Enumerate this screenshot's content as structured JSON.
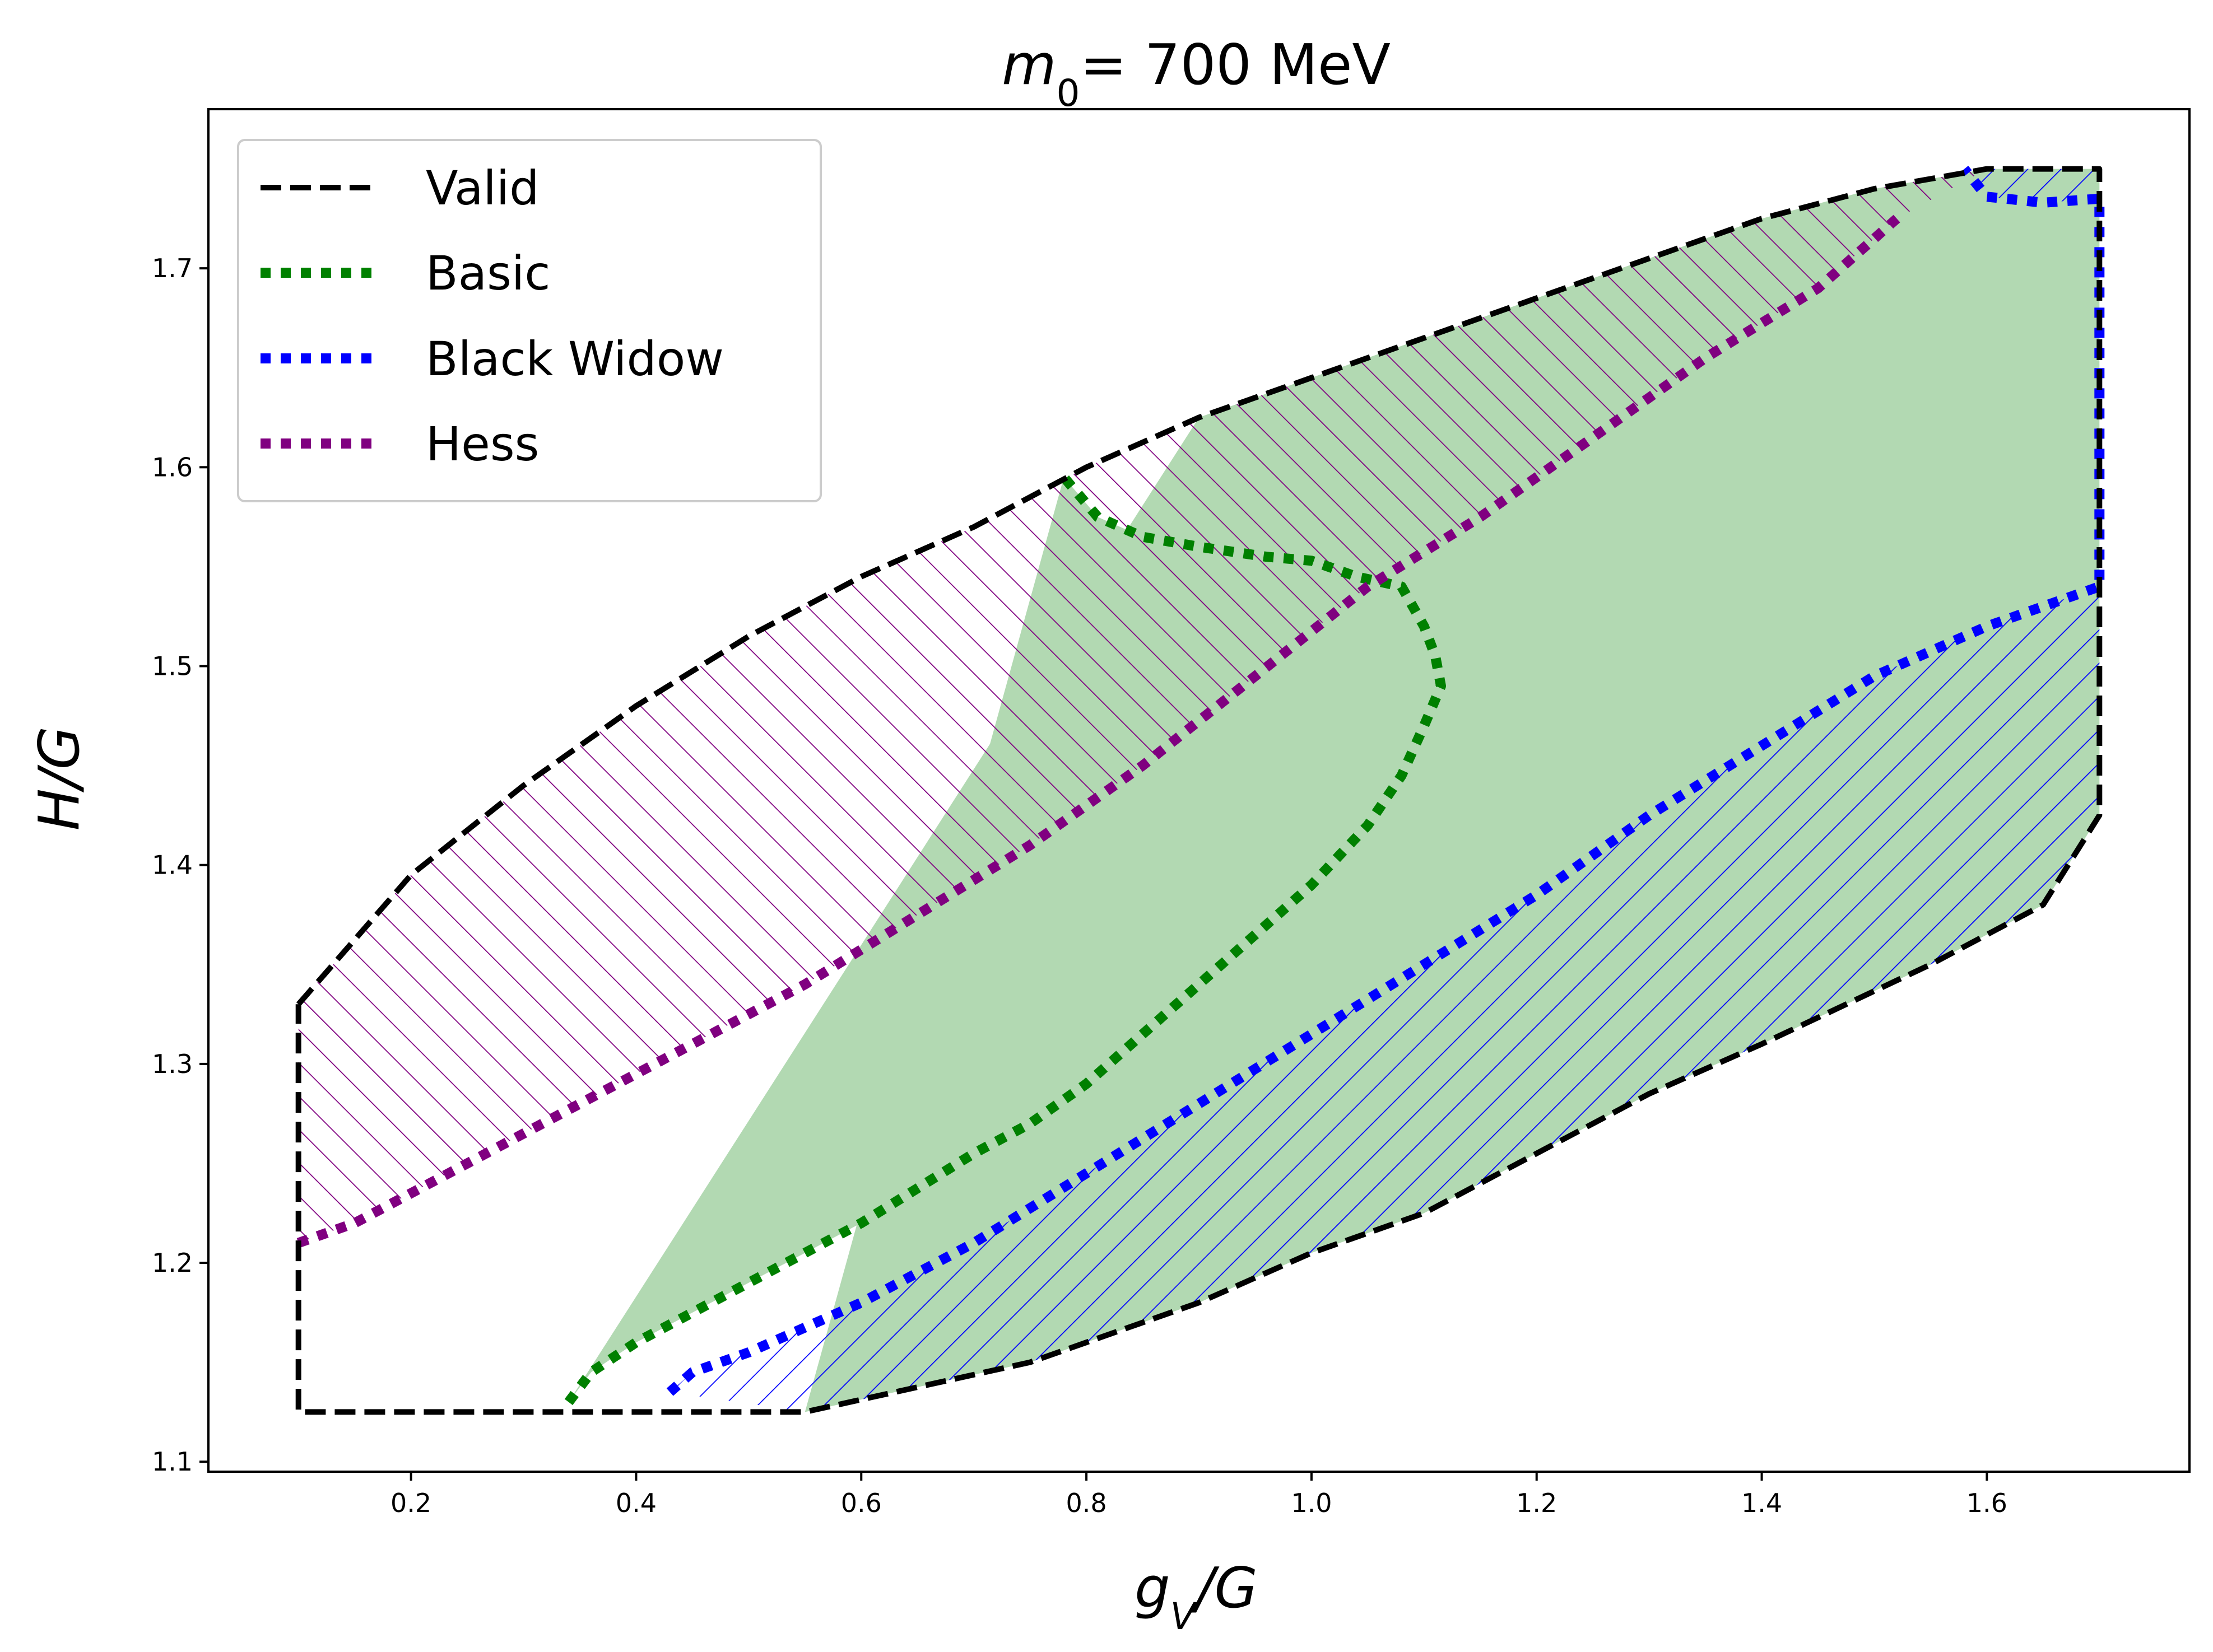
{
  "chart_data": {
    "type": "area",
    "title": {
      "math": "m",
      "sub": "0",
      "rest": "= 700 MeV"
    },
    "xlabel": {
      "base": "g",
      "sub": "V",
      "rest": "/G"
    },
    "ylabel": "H/G",
    "xlim": [
      0.02,
      1.78
    ],
    "ylim": [
      1.095,
      1.78
    ],
    "xticks": [
      0.2,
      0.4,
      0.6,
      0.8,
      1.0,
      1.2,
      1.4,
      1.6
    ],
    "xtick_labels": [
      "0.2",
      "0.4",
      "0.6",
      "0.8",
      "1.0",
      "1.2",
      "1.4",
      "1.6"
    ],
    "yticks": [
      1.1,
      1.2,
      1.3,
      1.4,
      1.5,
      1.6,
      1.7
    ],
    "ytick_labels": [
      "1.1",
      "1.2",
      "1.3",
      "1.4",
      "1.5",
      "1.6",
      "1.7"
    ],
    "legend_position": "top-left",
    "legend": [
      {
        "label": "Valid",
        "style": "dashed",
        "color": "#000000"
      },
      {
        "label": "Basic",
        "style": "dotted",
        "color": "#008000"
      },
      {
        "label": "Black Widow",
        "style": "dotted",
        "color": "#0000ff"
      },
      {
        "label": "Hess",
        "style": "dotted",
        "color": "#800080"
      }
    ],
    "series": [
      {
        "name": "Valid",
        "color": "#000000",
        "x": [
          0.1,
          0.2,
          0.3,
          0.4,
          0.5,
          0.6,
          0.7,
          0.8,
          0.9,
          1.0,
          1.1,
          1.2,
          1.3,
          1.4,
          1.5,
          1.6,
          1.7,
          1.7,
          1.65,
          1.55,
          1.4,
          1.3,
          1.2,
          1.1,
          1.0,
          0.9,
          0.8,
          0.75,
          0.55,
          0.4,
          0.1,
          0.1
        ],
        "y": [
          1.33,
          1.395,
          1.44,
          1.48,
          1.515,
          1.545,
          1.57,
          1.6,
          1.625,
          1.645,
          1.665,
          1.685,
          1.705,
          1.725,
          1.74,
          1.75,
          1.75,
          1.425,
          1.38,
          1.35,
          1.31,
          1.285,
          1.255,
          1.225,
          1.205,
          1.18,
          1.16,
          1.15,
          1.125,
          1.125,
          1.125,
          1.33
        ]
      },
      {
        "name": "Basic",
        "color": "#008000",
        "x": [
          0.34,
          0.36,
          0.4,
          0.5,
          0.6,
          0.7,
          0.75,
          0.8,
          0.85,
          0.9,
          0.95,
          1.0,
          1.05,
          1.08,
          1.1,
          1.115,
          1.11,
          1.1,
          1.08,
          1.04,
          1.0,
          0.96,
          0.9,
          0.85,
          0.81,
          0.78
        ],
        "y": [
          1.13,
          1.145,
          1.16,
          1.19,
          1.22,
          1.255,
          1.27,
          1.29,
          1.315,
          1.34,
          1.365,
          1.39,
          1.42,
          1.445,
          1.47,
          1.49,
          1.505,
          1.52,
          1.54,
          1.545,
          1.553,
          1.555,
          1.56,
          1.565,
          1.575,
          1.595
        ]
      },
      {
        "name": "Black Widow",
        "color": "#0000ff",
        "x": [
          0.43,
          0.45,
          0.5,
          0.6,
          0.7,
          0.8,
          0.9,
          1.0,
          1.1,
          1.2,
          1.3,
          1.4,
          1.5,
          1.6,
          1.7,
          1.7,
          1.65,
          1.6,
          1.58
        ],
        "y": [
          1.135,
          1.145,
          1.155,
          1.18,
          1.21,
          1.245,
          1.28,
          1.315,
          1.35,
          1.385,
          1.425,
          1.46,
          1.495,
          1.52,
          1.54,
          1.735,
          1.733,
          1.736,
          1.75
        ]
      },
      {
        "name": "Hess",
        "color": "#800080",
        "x": [
          0.1,
          0.15,
          0.25,
          0.35,
          0.45,
          0.55,
          0.65,
          0.75,
          0.85,
          0.95,
          1.05,
          1.15,
          1.25,
          1.35,
          1.45,
          1.52
        ],
        "y": [
          1.21,
          1.22,
          1.25,
          1.28,
          1.31,
          1.34,
          1.375,
          1.41,
          1.45,
          1.495,
          1.54,
          1.575,
          1.615,
          1.655,
          1.69,
          1.725
        ]
      }
    ]
  }
}
